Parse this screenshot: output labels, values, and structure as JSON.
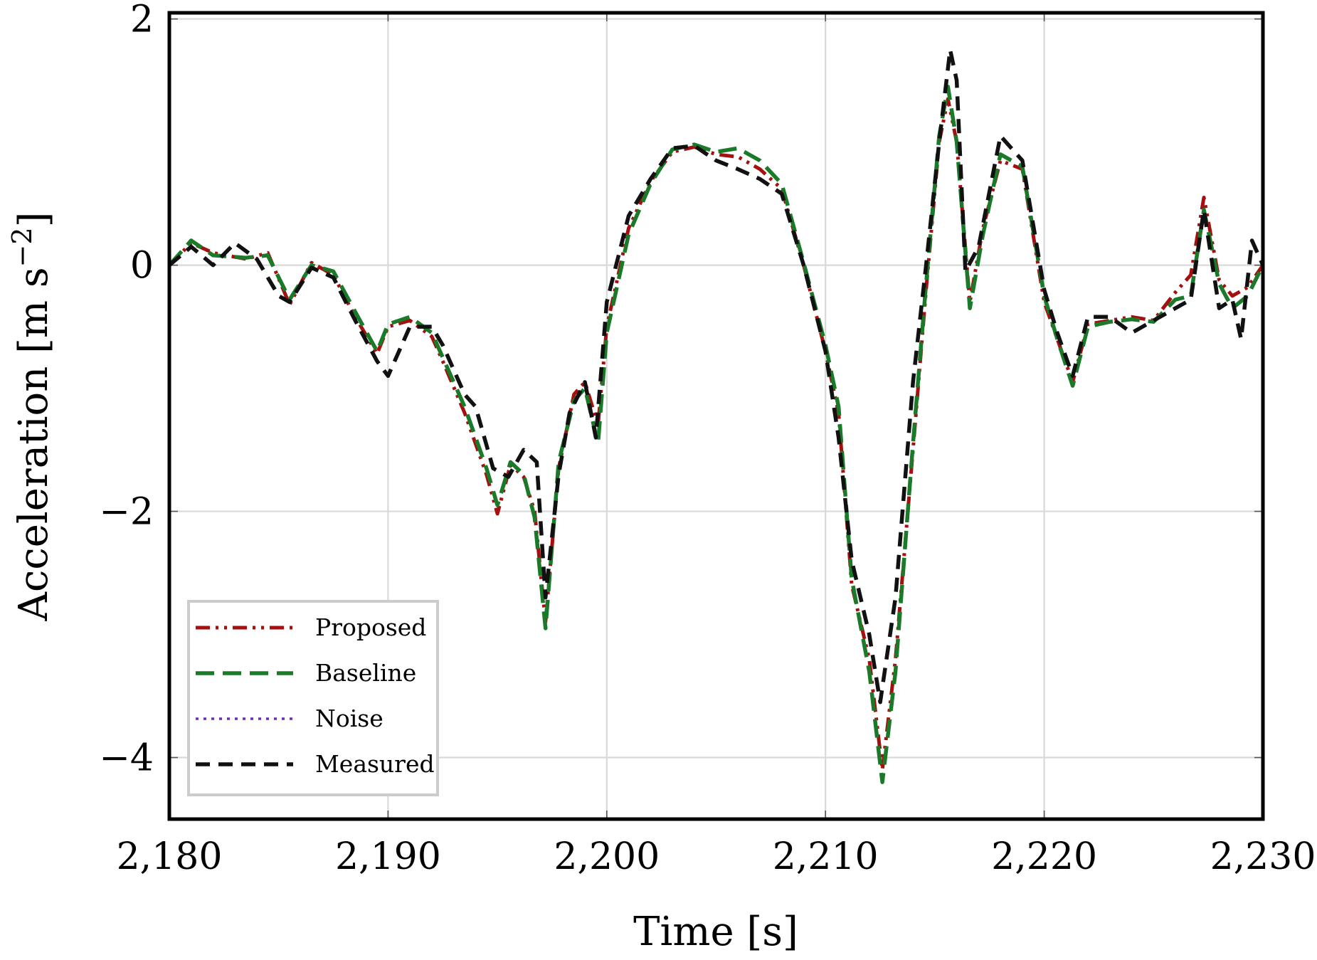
{
  "chart_data": {
    "type": "line",
    "xlabel": "Time [s]",
    "ylabel": "Acceleration [m s",
    "ylabel_sup": "−2",
    "ylabel_close": "]",
    "xlim": [
      2180,
      2230
    ],
    "ylim": [
      -4.5,
      2.05
    ],
    "grid": true,
    "legend_position": "lower-left",
    "x_ticks": [
      2180,
      2190,
      2200,
      2210,
      2220,
      2230
    ],
    "x_tick_labels": [
      "2,180",
      "2,190",
      "2,200",
      "2,210",
      "2,220",
      "2,230"
    ],
    "y_ticks": [
      -4,
      -2,
      0,
      2
    ],
    "y_tick_labels": [
      "−4",
      "−2",
      "0",
      "2"
    ],
    "series": [
      {
        "name": "Proposed",
        "color": "#a50f0f",
        "dash": "dash-dot-dot",
        "x": [
          2180.0,
          2181.0,
          2182.0,
          2183.5,
          2184.5,
          2185.5,
          2186.5,
          2187.5,
          2188.5,
          2189.5,
          2190.0,
          2191.0,
          2192.0,
          2192.5,
          2193.5,
          2194.5,
          2195.0,
          2195.6,
          2196.2,
          2196.7,
          2197.2,
          2197.8,
          2198.5,
          2199.0,
          2199.6,
          2200.0,
          2201.0,
          2202.0,
          2203.0,
          2204.0,
          2205.0,
          2206.0,
          2207.0,
          2208.0,
          2209.0,
          2210.0,
          2210.6,
          2211.2,
          2212.0,
          2212.6,
          2213.2,
          2214.0,
          2214.6,
          2215.2,
          2215.6,
          2216.0,
          2216.6,
          2217.2,
          2218.0,
          2219.0,
          2220.0,
          2220.6,
          2221.3,
          2222.0,
          2223.0,
          2224.0,
          2225.0,
          2226.0,
          2226.7,
          2227.3,
          2228.0,
          2228.6,
          2229.3,
          2230.0
        ],
        "y": [
          0.0,
          0.18,
          0.1,
          0.05,
          0.1,
          -0.32,
          0.02,
          -0.08,
          -0.42,
          -0.72,
          -0.5,
          -0.45,
          -0.58,
          -0.78,
          -1.2,
          -1.7,
          -2.02,
          -1.62,
          -1.72,
          -2.0,
          -2.9,
          -1.65,
          -1.05,
          -0.95,
          -1.3,
          -0.5,
          0.3,
          0.68,
          0.92,
          0.96,
          0.9,
          0.88,
          0.78,
          0.62,
          0.0,
          -0.7,
          -1.2,
          -2.6,
          -3.2,
          -4.1,
          -3.2,
          -1.5,
          -0.2,
          1.0,
          1.35,
          1.0,
          -0.3,
          0.3,
          0.85,
          0.78,
          -0.3,
          -0.6,
          -0.95,
          -0.48,
          -0.45,
          -0.42,
          -0.45,
          -0.22,
          -0.08,
          0.55,
          -0.12,
          -0.25,
          -0.18,
          0.0
        ]
      },
      {
        "name": "Baseline",
        "color": "#1a7a2a",
        "dash": "long-dash",
        "x": [
          2180.0,
          2181.0,
          2182.0,
          2183.5,
          2184.5,
          2185.5,
          2186.5,
          2187.5,
          2188.5,
          2189.5,
          2190.0,
          2191.0,
          2192.0,
          2192.5,
          2193.5,
          2194.5,
          2195.0,
          2195.6,
          2196.2,
          2196.7,
          2197.2,
          2197.8,
          2198.5,
          2199.0,
          2199.6,
          2200.0,
          2201.0,
          2202.0,
          2203.0,
          2204.0,
          2205.0,
          2206.0,
          2207.0,
          2208.0,
          2209.0,
          2210.0,
          2210.6,
          2211.2,
          2212.0,
          2212.6,
          2213.2,
          2214.0,
          2214.6,
          2215.2,
          2215.6,
          2216.0,
          2216.6,
          2217.2,
          2218.0,
          2219.0,
          2220.0,
          2220.6,
          2221.3,
          2222.0,
          2223.0,
          2224.0,
          2225.0,
          2226.0,
          2226.7,
          2227.3,
          2228.0,
          2228.6,
          2229.3,
          2230.0
        ],
        "y": [
          0.0,
          0.2,
          0.08,
          0.06,
          0.08,
          -0.28,
          0.0,
          -0.05,
          -0.38,
          -0.7,
          -0.48,
          -0.42,
          -0.55,
          -0.75,
          -1.15,
          -1.65,
          -1.95,
          -1.6,
          -1.7,
          -2.05,
          -2.95,
          -1.6,
          -1.1,
          -1.0,
          -1.45,
          -0.55,
          0.25,
          0.66,
          0.94,
          0.98,
          0.92,
          0.95,
          0.85,
          0.66,
          0.02,
          -0.65,
          -1.15,
          -2.55,
          -3.3,
          -4.2,
          -3.3,
          -1.45,
          -0.15,
          1.05,
          1.45,
          1.0,
          -0.35,
          0.25,
          0.9,
          0.8,
          -0.25,
          -0.6,
          -0.98,
          -0.5,
          -0.46,
          -0.44,
          -0.46,
          -0.28,
          -0.25,
          0.45,
          -0.15,
          -0.35,
          -0.25,
          0.0
        ]
      },
      {
        "name": "Noise",
        "color": "#6a2bc2",
        "dash": "dotted",
        "x": [],
        "y": []
      },
      {
        "name": "Measured",
        "color": "#111111",
        "dash": "dashed",
        "x": [
          2180.0,
          2181.0,
          2182.0,
          2183.0,
          2184.0,
          2185.0,
          2185.5,
          2186.5,
          2187.5,
          2188.5,
          2189.5,
          2190.0,
          2191.0,
          2192.0,
          2192.5,
          2193.5,
          2194.0,
          2194.8,
          2195.5,
          2196.2,
          2196.8,
          2197.2,
          2197.8,
          2198.3,
          2199.0,
          2199.5,
          2200.0,
          2201.0,
          2202.0,
          2203.0,
          2204.0,
          2205.0,
          2206.0,
          2207.0,
          2208.0,
          2209.0,
          2210.0,
          2210.6,
          2211.2,
          2212.0,
          2212.5,
          2213.2,
          2214.0,
          2214.6,
          2215.2,
          2215.7,
          2216.0,
          2216.4,
          2217.0,
          2218.0,
          2219.0,
          2220.0,
          2220.6,
          2221.3,
          2222.0,
          2223.0,
          2224.0,
          2225.0,
          2226.0,
          2226.7,
          2227.3,
          2228.0,
          2228.6,
          2229.0,
          2229.5,
          2230.0
        ],
        "y": [
          0.0,
          0.15,
          0.0,
          0.18,
          0.05,
          -0.25,
          -0.3,
          -0.02,
          -0.1,
          -0.45,
          -0.78,
          -0.9,
          -0.5,
          -0.5,
          -0.65,
          -1.05,
          -1.15,
          -1.65,
          -1.72,
          -1.5,
          -1.6,
          -2.7,
          -1.7,
          -1.2,
          -0.95,
          -1.4,
          -0.3,
          0.4,
          0.7,
          0.95,
          0.97,
          0.85,
          0.78,
          0.7,
          0.58,
          0.0,
          -0.7,
          -1.4,
          -2.4,
          -3.0,
          -3.55,
          -2.7,
          -0.95,
          0.0,
          1.0,
          1.75,
          1.5,
          -0.05,
          0.15,
          1.05,
          0.85,
          -0.2,
          -0.55,
          -0.9,
          -0.42,
          -0.42,
          -0.55,
          -0.45,
          -0.35,
          -0.28,
          0.45,
          -0.35,
          -0.28,
          -0.6,
          0.2,
          0.0
        ]
      }
    ]
  }
}
